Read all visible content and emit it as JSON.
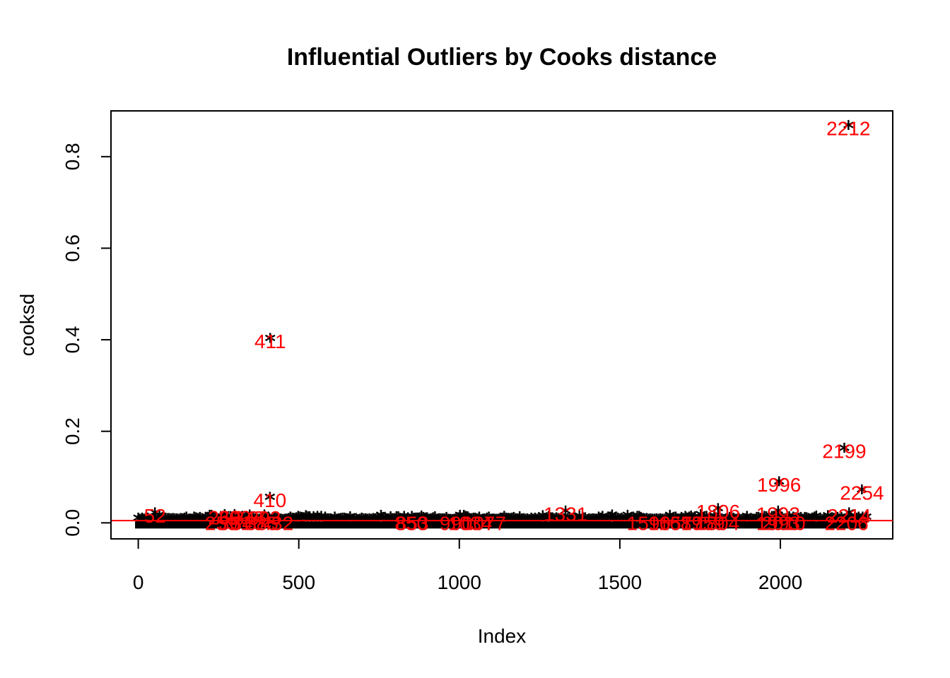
{
  "chart_data": {
    "type": "scatter",
    "title": "Influential Outliers by Cooks distance",
    "xlabel": "Index",
    "ylabel": "cooksd",
    "xlim": [
      -85,
      2350
    ],
    "ylim": [
      -0.035,
      0.9
    ],
    "x_ticks": [
      0,
      500,
      1000,
      1500,
      2000
    ],
    "y_ticks": [
      0.0,
      0.2,
      0.4,
      0.6,
      0.8
    ],
    "x_tick_labels": [
      "0",
      "500",
      "1000",
      "1500",
      "2000"
    ],
    "y_tick_labels": [
      "0.0",
      "0.2",
      "0.4",
      "0.6",
      "0.8"
    ],
    "cutoff_line": 0.005,
    "point_symbol": "*",
    "point_color": "#000000",
    "label_color": "#ff0000",
    "cutoff_color": "#ff0000",
    "grid": false,
    "legend": "none",
    "outliers": [
      {
        "x": 2212,
        "y": 0.862,
        "label": "2212"
      },
      {
        "x": 411,
        "y": 0.397,
        "label": "411"
      },
      {
        "x": 2199,
        "y": 0.157,
        "label": "2199"
      },
      {
        "x": 1996,
        "y": 0.084,
        "label": "1996"
      },
      {
        "x": 2254,
        "y": 0.066,
        "label": "2254"
      },
      {
        "x": 410,
        "y": 0.05,
        "label": "410"
      },
      {
        "x": 1806,
        "y": 0.025,
        "label": "1806"
      },
      {
        "x": 1993,
        "y": 0.02,
        "label": "1993"
      },
      {
        "x": 1331,
        "y": 0.02,
        "label": "1331"
      },
      {
        "x": 52,
        "y": 0.016,
        "label": "52"
      },
      {
        "x": 2214,
        "y": 0.016,
        "label": "2214"
      },
      {
        "x": 1993,
        "y": 0.0,
        "label": "1993"
      },
      {
        "x": 2010,
        "y": 0.0,
        "label": "2010"
      },
      {
        "x": 2206,
        "y": 0.0,
        "label": "2206"
      },
      {
        "x": 1590,
        "y": 0.0,
        "label": "1590"
      },
      {
        "x": 1689,
        "y": 0.0,
        "label": "1689"
      },
      {
        "x": 1759,
        "y": 0.0,
        "label": "1759"
      },
      {
        "x": 1804,
        "y": 0.0,
        "label": "1804"
      },
      {
        "x": 1657,
        "y": 0.0,
        "label": "1657"
      },
      {
        "x": 1077,
        "y": 0.0,
        "label": "1077"
      },
      {
        "x": 1034,
        "y": 0.0,
        "label": "1034"
      },
      {
        "x": 990,
        "y": 0.0,
        "label": "990"
      },
      {
        "x": 853,
        "y": 0.0,
        "label": "853"
      },
      {
        "x": 850,
        "y": 0.0,
        "label": "850"
      },
      {
        "x": 269,
        "y": 0.012,
        "label": "269"
      },
      {
        "x": 300,
        "y": 0.012,
        "label": "300"
      },
      {
        "x": 347,
        "y": 0.011,
        "label": "347"
      },
      {
        "x": 393,
        "y": 0.011,
        "label": "393"
      },
      {
        "x": 259,
        "y": 0.0,
        "label": "259"
      },
      {
        "x": 301,
        "y": 0.0,
        "label": "301"
      },
      {
        "x": 340,
        "y": 0.0,
        "label": "340"
      },
      {
        "x": 385,
        "y": 0.0,
        "label": "385"
      },
      {
        "x": 432,
        "y": 0.0,
        "label": "432"
      }
    ]
  }
}
